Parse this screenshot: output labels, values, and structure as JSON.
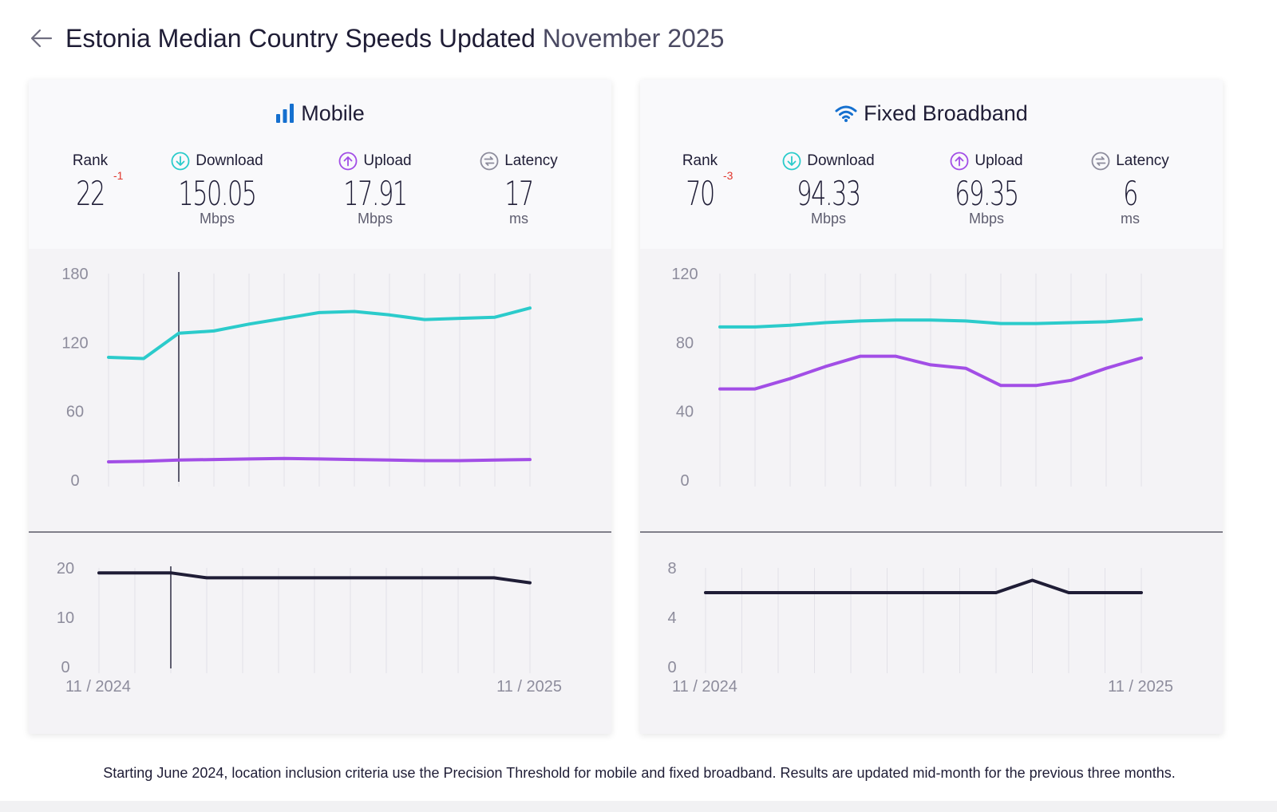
{
  "header": {
    "title_main": "Estonia Median Country Speeds Updated",
    "title_sub": "November 2025",
    "back_icon": "arrow-left-icon"
  },
  "colors": {
    "download": "#2bcbcb",
    "upload": "#a24ee6",
    "latency": "#1f1d36",
    "rank_change": "#e0362c",
    "accent_blue": "#1570cf"
  },
  "panels": [
    {
      "id": "mobile",
      "title": "Mobile",
      "icon": "signal-bars-icon",
      "metrics": {
        "rank_label": "Rank",
        "rank_value": "22",
        "rank_change": "-1",
        "download_label": "Download",
        "download_value": "150.05",
        "download_unit": "Mbps",
        "upload_label": "Upload",
        "upload_value": "17.91",
        "upload_unit": "Mbps",
        "latency_label": "Latency",
        "latency_value": "17",
        "latency_unit": "ms"
      }
    },
    {
      "id": "fixed",
      "title": "Fixed Broadband",
      "icon": "wifi-icon",
      "metrics": {
        "rank_label": "Rank",
        "rank_value": "70",
        "rank_change": "-3",
        "download_label": "Download",
        "download_value": "94.33",
        "download_unit": "Mbps",
        "upload_label": "Upload",
        "upload_value": "69.35",
        "upload_unit": "Mbps",
        "latency_label": "Latency",
        "latency_value": "6",
        "latency_unit": "ms"
      }
    }
  ],
  "chart_data": [
    {
      "type": "line",
      "panel": "mobile",
      "chart": "speed",
      "ylim": [
        0,
        180
      ],
      "yticks": [
        0,
        60,
        120,
        180
      ],
      "x": [
        "11/2024",
        "12/2024",
        "01/2025",
        "02/2025",
        "03/2025",
        "04/2025",
        "05/2025",
        "06/2025",
        "07/2025",
        "08/2025",
        "09/2025",
        "10/2025",
        "11/2025"
      ],
      "xtick_labels": [
        "11 / 2024",
        "11 / 2025"
      ],
      "cursor_index": 2,
      "series": [
        {
          "key": "download",
          "values": [
            107,
            106,
            128,
            130,
            136,
            141,
            146,
            147,
            144,
            140,
            141,
            142,
            150
          ]
        },
        {
          "key": "upload",
          "values": [
            16,
            16.5,
            17.5,
            18,
            18.5,
            19,
            18.5,
            18,
            17.5,
            17,
            17,
            17.5,
            18
          ]
        }
      ]
    },
    {
      "type": "line",
      "panel": "mobile",
      "chart": "latency",
      "ylim": [
        0,
        20
      ],
      "yticks": [
        0,
        10,
        20
      ],
      "x": [
        "11/2024",
        "12/2024",
        "01/2025",
        "02/2025",
        "03/2025",
        "04/2025",
        "05/2025",
        "06/2025",
        "07/2025",
        "08/2025",
        "09/2025",
        "10/2025",
        "11/2025"
      ],
      "xtick_labels": [
        "11 / 2024",
        "11 / 2025"
      ],
      "cursor_index": 2,
      "series": [
        {
          "key": "latency",
          "values": [
            19,
            19,
            19,
            18,
            18,
            18,
            18,
            18,
            18,
            18,
            18,
            18,
            17
          ]
        }
      ]
    },
    {
      "type": "line",
      "panel": "fixed",
      "chart": "speed",
      "ylim": [
        0,
        120
      ],
      "yticks": [
        0,
        40,
        80,
        120
      ],
      "x": [
        "11/2024",
        "12/2024",
        "01/2025",
        "02/2025",
        "03/2025",
        "04/2025",
        "05/2025",
        "06/2025",
        "07/2025",
        "08/2025",
        "09/2025",
        "10/2025",
        "11/2025"
      ],
      "xtick_labels": [
        "11 / 2024",
        "11 / 2025"
      ],
      "series": [
        {
          "key": "download",
          "values": [
            89,
            89,
            90,
            91.5,
            92.5,
            93,
            93,
            92.5,
            91,
            91,
            91.5,
            92,
            93.5
          ]
        },
        {
          "key": "upload",
          "values": [
            53,
            53,
            59,
            66,
            72,
            72,
            67,
            65,
            55,
            55,
            58,
            65,
            71
          ]
        }
      ]
    },
    {
      "type": "line",
      "panel": "fixed",
      "chart": "latency",
      "ylim": [
        0,
        8
      ],
      "yticks": [
        0,
        4,
        8
      ],
      "x": [
        "11/2024",
        "12/2024",
        "01/2025",
        "02/2025",
        "03/2025",
        "04/2025",
        "05/2025",
        "06/2025",
        "07/2025",
        "08/2025",
        "09/2025",
        "10/2025",
        "11/2025"
      ],
      "xtick_labels": [
        "11 / 2024",
        "11 / 2025"
      ],
      "series": [
        {
          "key": "latency",
          "values": [
            6,
            6,
            6,
            6,
            6,
            6,
            6,
            6,
            6,
            7,
            6,
            6,
            6
          ]
        }
      ]
    }
  ],
  "footnote": "Starting June 2024, location inclusion criteria use the Precision Threshold for mobile and fixed broadband. Results are updated mid-month for the previous three months."
}
